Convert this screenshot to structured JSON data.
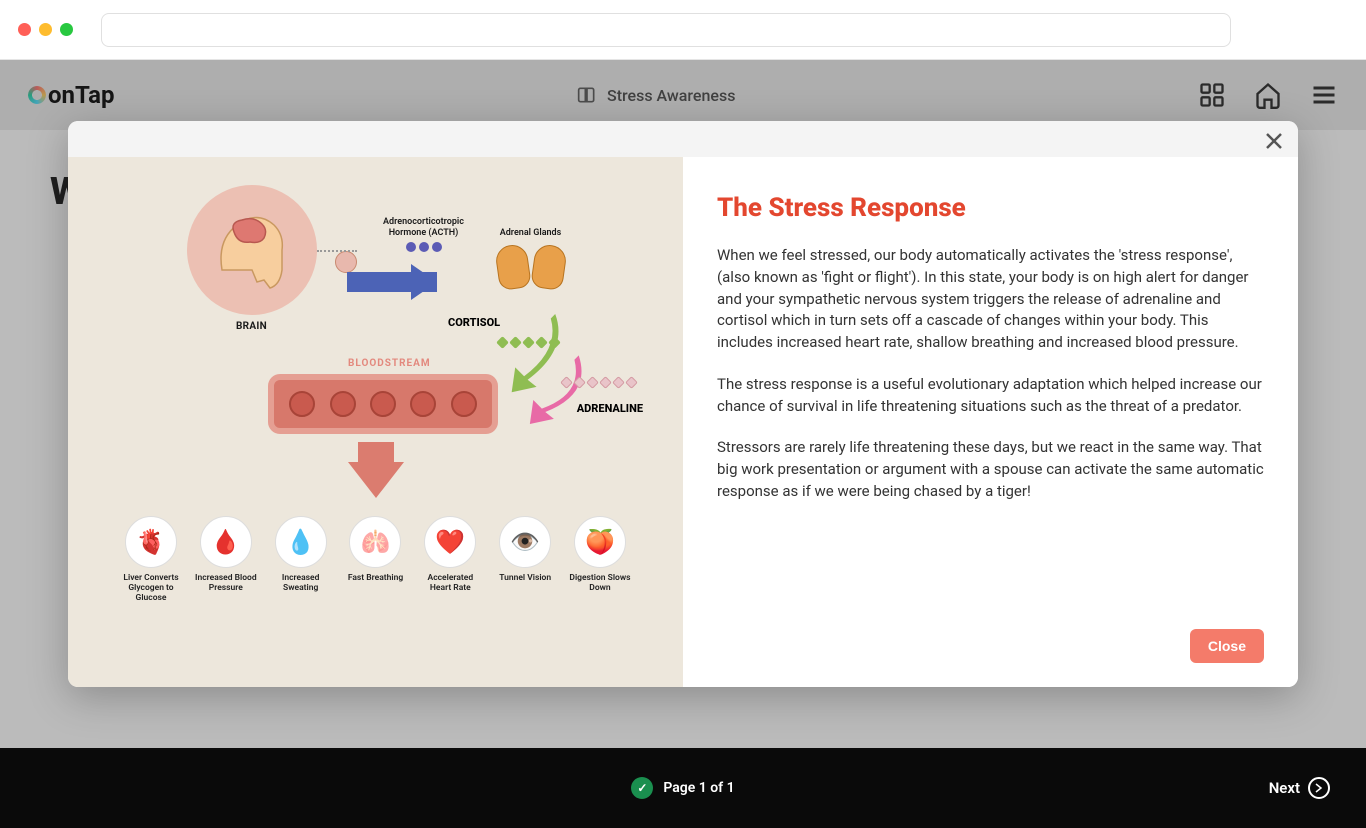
{
  "browser": {
    "traffic_light_colors": {
      "red": "#ff5f57",
      "yellow": "#febc2e",
      "green": "#28c840"
    }
  },
  "header": {
    "logo_text": "onTap",
    "course_title": "Stress Awareness",
    "text_color": "#444444"
  },
  "background": {
    "heading_partial": "W"
  },
  "modal": {
    "title": "The Stress Response",
    "title_color": "#e3472f",
    "paragraph1": "When we feel stressed, our body automatically activates the 'stress response', (also known as 'fight or flight'). In this state, your body is on high alert for danger and your sympathetic nervous system triggers the release of adrenaline and cortisol which in turn sets off a cascade of changes within your body. This includes increased heart rate, shallow breathing and increased blood pressure.",
    "paragraph2": "The stress response is a useful evolutionary adaptation which helped increase our chance of survival in life threatening situations such as the threat of a predator.",
    "paragraph3": "Stressors are rarely life threatening these days, but we react in the same way. That big work presentation or argument with a spouse can activate the same automatic response as if we were being chased by a tiger!",
    "close_label": "Close",
    "close_btn_color": "#f47b6a",
    "infographic": {
      "background": "#ede7dc",
      "brain_label": "BRAIN",
      "brain_circle_color": "#ecc0b3",
      "brain_head_color": "#f7ce9e",
      "brain_color": "#de7871",
      "acth_label": "Adrenocorticotropic Hormone (ACTH)",
      "acth_dot_color": "#5b5bb5",
      "arrow_right_color": "#4c63b6",
      "adrenal_label": "Adrenal Glands",
      "kidney_color": "#e8a04a",
      "cortisol_label": "CORTISOL",
      "cortisol_arrow_color": "#8fbd52",
      "cortisol_dot_color": "#8fbd52",
      "adrenaline_label": "ADRENALINE",
      "adrenaline_arrow_color": "#e86aa6",
      "adrenaline_dot_color": "#e9c4c9",
      "bloodstream_label": "BLOODSTREAM",
      "bloodstream_label_color": "#e3897e",
      "bloodstream_tube_color": "#e59f93",
      "bloodstream_inner_color": "#d7786b",
      "bloodcell_color": "#c95a4e",
      "down_arrow_color": "#db7c6f",
      "effects": [
        {
          "caption": "Liver Converts Glycogen to Glucose",
          "icon": "🫀",
          "icon_color": "#b84a3f"
        },
        {
          "caption": "Increased Blood Pressure",
          "icon": "🩸",
          "icon_color": "#c94d3f"
        },
        {
          "caption": "Increased Sweating",
          "icon": "💧",
          "icon_color": "#5fb8d9"
        },
        {
          "caption": "Fast Breathing",
          "icon": "🫁",
          "icon_color": "#e39b8e"
        },
        {
          "caption": "Accelerated Heart Rate",
          "icon": "❤️",
          "icon_color": "#d14a3e"
        },
        {
          "caption": "Tunnel Vision",
          "icon": "👁️",
          "icon_color": "#3a9bb5"
        },
        {
          "caption": "Digestion Slows Down",
          "icon": "🍑",
          "icon_color": "#e8a896"
        }
      ]
    }
  },
  "footer": {
    "page_text": "Page 1 of 1",
    "check_color": "#1a8f4f",
    "next_label": "Next",
    "background": "#0a0a0a"
  }
}
